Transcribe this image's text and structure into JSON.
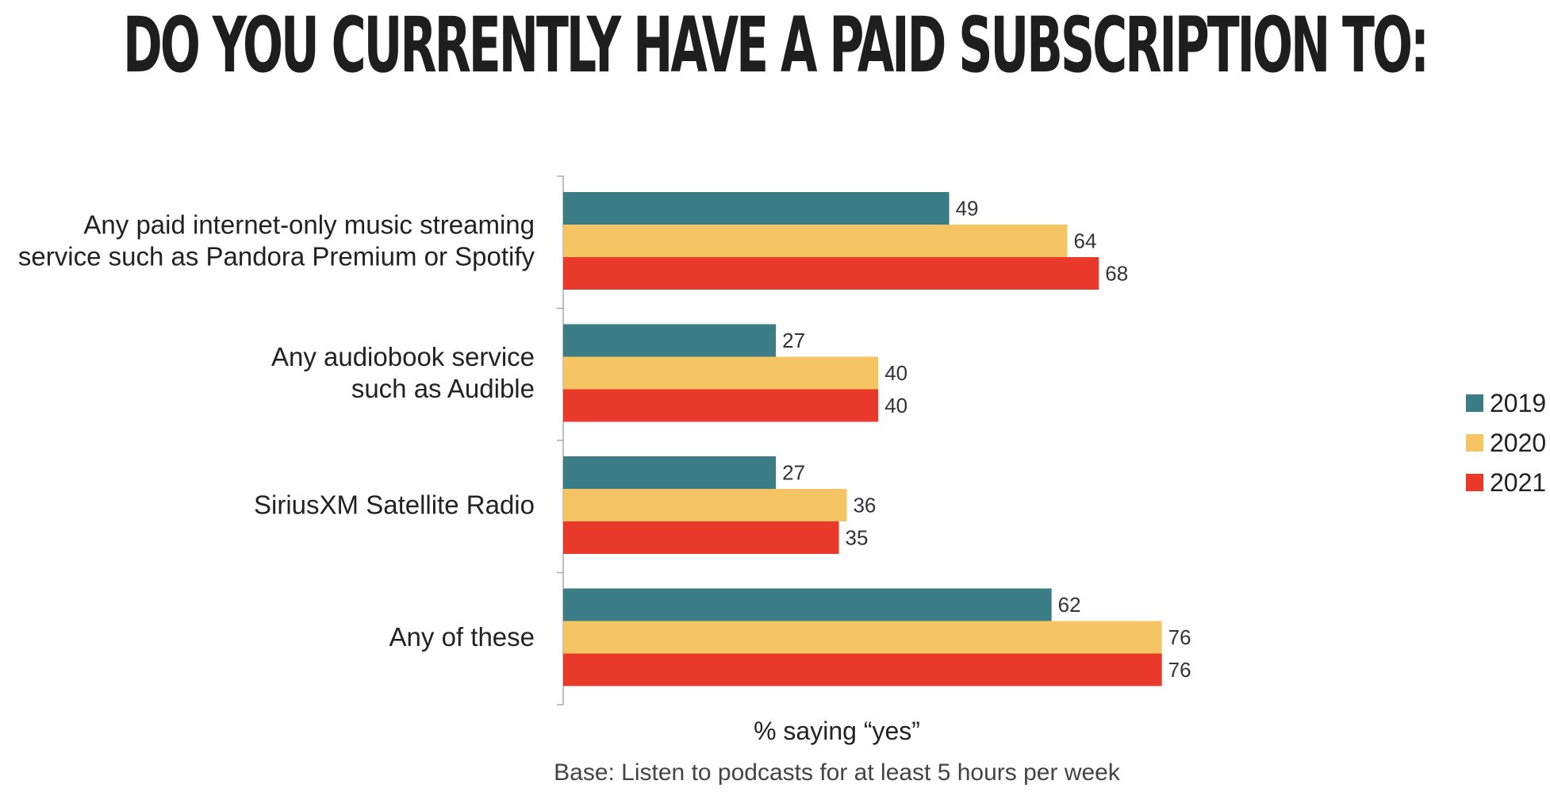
{
  "chart_data": {
    "type": "bar",
    "orientation": "horizontal",
    "title": "DO YOU CURRENTLY HAVE A PAID SUBSCRIPTION TO:",
    "categories": [
      [
        "Any paid internet-only music streaming",
        "service such as Pandora Premium or Spotify"
      ],
      [
        "Any audiobook service",
        "such as Audible"
      ],
      [
        "SiriusXM Satellite Radio"
      ],
      [
        "Any of these"
      ]
    ],
    "series": [
      {
        "name": "2019",
        "color": "#3a7d87",
        "values": [
          49,
          27,
          27,
          62
        ]
      },
      {
        "name": "2020",
        "color": "#f6c563",
        "values": [
          64,
          40,
          36,
          76
        ]
      },
      {
        "name": "2021",
        "color": "#e8392a",
        "values": [
          68,
          40,
          35,
          76
        ]
      }
    ],
    "xlabel": "% saying “yes”",
    "xlim": [
      0,
      100
    ],
    "grid": false,
    "legend": "right",
    "data_labels": true
  },
  "footnote": "Base: Listen to podcasts for at least 5 hours per week"
}
